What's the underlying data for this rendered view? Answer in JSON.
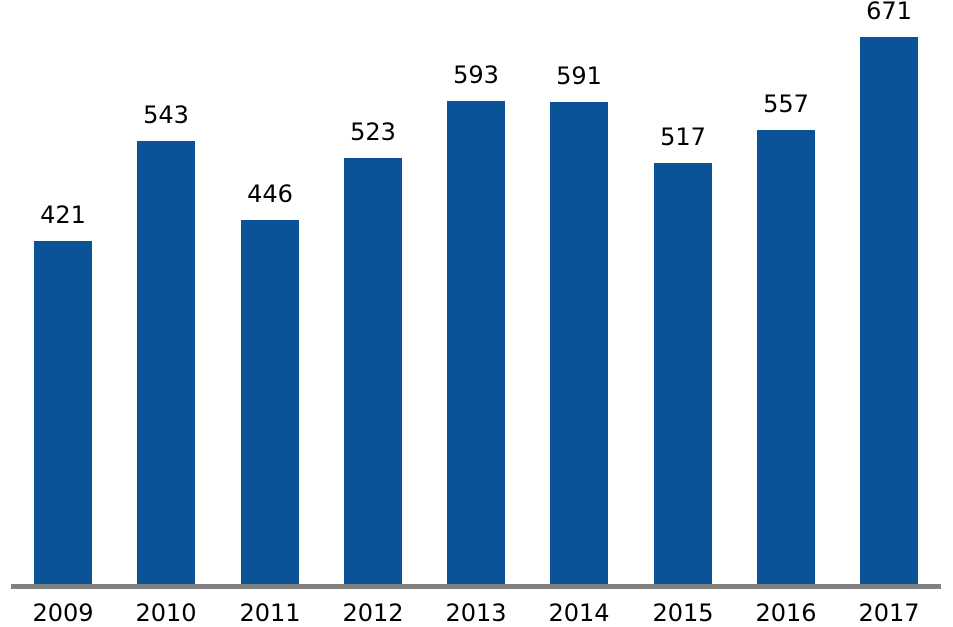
{
  "chart_data": {
    "type": "bar",
    "title": "",
    "xlabel": "",
    "ylabel": "",
    "categories": [
      "2009",
      "2010",
      "2011",
      "2012",
      "2013",
      "2014",
      "2015",
      "2016",
      "2017"
    ],
    "values": [
      421,
      543,
      446,
      523,
      593,
      591,
      517,
      557,
      671
    ],
    "ylim": [
      0,
      700
    ],
    "grid": false,
    "legend": false,
    "value_labels_shown": true,
    "colors": {
      "bar": "#0A5396",
      "baseline": "#7F7F7F",
      "label_text": "#000000",
      "background": "#FFFFFF"
    }
  }
}
